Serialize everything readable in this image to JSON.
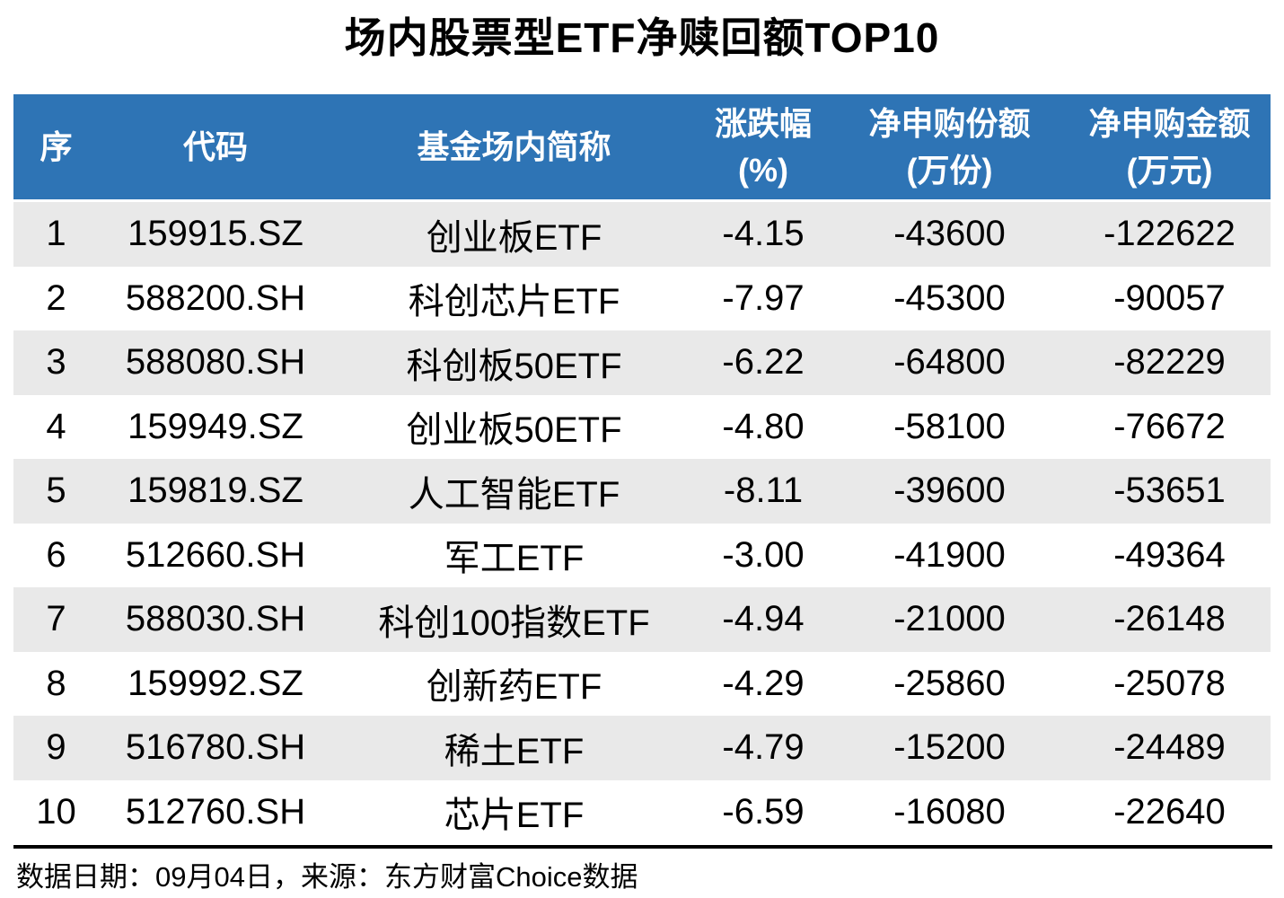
{
  "title": "场内股票型ETF净赎回额TOP10",
  "table": {
    "columns": [
      {
        "key": "rank",
        "label": "序",
        "unit": ""
      },
      {
        "key": "code",
        "label": "代码",
        "unit": ""
      },
      {
        "key": "name",
        "label": "基金场内简称",
        "unit": ""
      },
      {
        "key": "change",
        "label": "涨跌幅",
        "unit": "(%)"
      },
      {
        "key": "shares",
        "label": "净申购份额",
        "unit": "(万份)"
      },
      {
        "key": "amount",
        "label": "净申购金额",
        "unit": "(万元)"
      }
    ],
    "rows": [
      {
        "rank": "1",
        "code": "159915.SZ",
        "name": "创业板ETF",
        "change": "-4.15",
        "shares": "-43600",
        "amount": "-122622"
      },
      {
        "rank": "2",
        "code": "588200.SH",
        "name": "科创芯片ETF",
        "change": "-7.97",
        "shares": "-45300",
        "amount": "-90057"
      },
      {
        "rank": "3",
        "code": "588080.SH",
        "name": "科创板50ETF",
        "change": "-6.22",
        "shares": "-64800",
        "amount": "-82229"
      },
      {
        "rank": "4",
        "code": "159949.SZ",
        "name": "创业板50ETF",
        "change": "-4.80",
        "shares": "-58100",
        "amount": "-76672"
      },
      {
        "rank": "5",
        "code": "159819.SZ",
        "name": "人工智能ETF",
        "change": "-8.11",
        "shares": "-39600",
        "amount": "-53651"
      },
      {
        "rank": "6",
        "code": "512660.SH",
        "name": "军工ETF",
        "change": "-3.00",
        "shares": "-41900",
        "amount": "-49364"
      },
      {
        "rank": "7",
        "code": "588030.SH",
        "name": "科创100指数ETF",
        "change": "-4.94",
        "shares": "-21000",
        "amount": "-26148"
      },
      {
        "rank": "8",
        "code": "159992.SZ",
        "name": "创新药ETF",
        "change": "-4.29",
        "shares": "-25860",
        "amount": "-25078"
      },
      {
        "rank": "9",
        "code": "516780.SH",
        "name": "稀土ETF",
        "change": "-4.79",
        "shares": "-15200",
        "amount": "-24489"
      },
      {
        "rank": "10",
        "code": "512760.SH",
        "name": "芯片ETF",
        "change": "-6.59",
        "shares": "-16080",
        "amount": "-22640"
      }
    ]
  },
  "footer": {
    "text": "数据日期：09月04日，来源：东方财富Choice数据"
  },
  "colors": {
    "header_bg": "#2E74B5",
    "stripe_bg": "#E9E9E9",
    "header_text": "#FFFFFF",
    "body_text": "#000000"
  },
  "chart_data": {
    "type": "table",
    "title": "场内股票型ETF净赎回额TOP10",
    "columns": [
      "序",
      "代码",
      "基金场内简称",
      "涨跌幅(%)",
      "净申购份额(万份)",
      "净申购金额(万元)"
    ],
    "rows": [
      [
        1,
        "159915.SZ",
        "创业板ETF",
        -4.15,
        -43600,
        -122622
      ],
      [
        2,
        "588200.SH",
        "科创芯片ETF",
        -7.97,
        -45300,
        -90057
      ],
      [
        3,
        "588080.SH",
        "科创板50ETF",
        -6.22,
        -64800,
        -82229
      ],
      [
        4,
        "159949.SZ",
        "创业板50ETF",
        -4.8,
        -58100,
        -76672
      ],
      [
        5,
        "159819.SZ",
        "人工智能ETF",
        -8.11,
        -39600,
        -53651
      ],
      [
        6,
        "512660.SH",
        "军工ETF",
        -3.0,
        -41900,
        -49364
      ],
      [
        7,
        "588030.SH",
        "科创100指数ETF",
        -4.94,
        -21000,
        -26148
      ],
      [
        8,
        "159992.SZ",
        "创新药ETF",
        -4.29,
        -25860,
        -25078
      ],
      [
        9,
        "516780.SH",
        "稀土ETF",
        -4.79,
        -15200,
        -24489
      ],
      [
        10,
        "512760.SH",
        "芯片ETF",
        -6.59,
        -16080,
        -22640
      ]
    ],
    "source_note": "数据日期：09月04日，来源：东方财富Choice数据"
  }
}
